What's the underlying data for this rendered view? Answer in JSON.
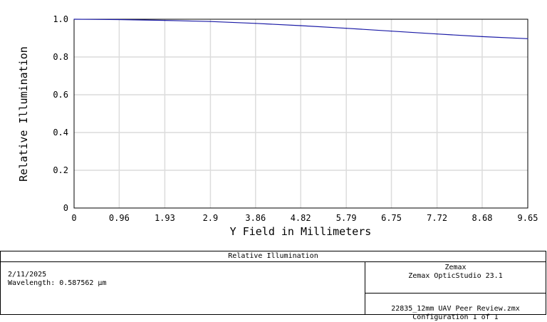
{
  "chart_data": {
    "type": "line",
    "title": "",
    "xlabel": "Y Field in Millimeters",
    "ylabel": "Relative Illumination",
    "xlim": [
      0,
      9.65
    ],
    "ylim": [
      0,
      1.0
    ],
    "x_ticks": [
      "0",
      "0.96",
      "1.93",
      "2.9",
      "3.86",
      "4.82",
      "5.79",
      "6.75",
      "7.72",
      "8.68",
      "9.65"
    ],
    "y_ticks": [
      "0",
      "0.2",
      "0.4",
      "0.6",
      "0.8",
      "1.0"
    ],
    "grid": true,
    "series": [
      {
        "color": "#1a1aa6",
        "x": [
          0,
          0.96,
          1.93,
          2.9,
          3.86,
          4.82,
          5.79,
          6.75,
          7.72,
          8.68,
          9.65
        ],
        "y": [
          1.0,
          0.998,
          0.994,
          0.988,
          0.978,
          0.966,
          0.952,
          0.937,
          0.922,
          0.908,
          0.897
        ]
      }
    ]
  },
  "footer": {
    "title": "Relative Illumination",
    "date": "2/11/2025",
    "wavelength": "Wavelength: 0.587562 µm",
    "company": "Zemax",
    "product": "Zemax OpticStudio 23.1",
    "file": "22835_12mm UAV Peer Review.zmx",
    "configuration": "Configuration 1 of 1"
  }
}
